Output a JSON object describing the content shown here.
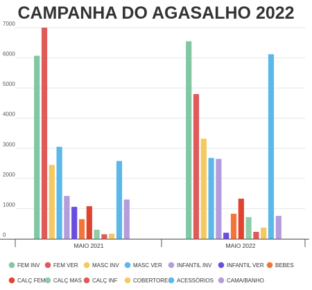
{
  "chart_data": {
    "type": "bar",
    "title": "CAMPANHA DO AGASALHO 2022",
    "xlabel": "",
    "ylabel": "",
    "categories": [
      "MAIO 2021",
      "MAIO 2022"
    ],
    "ylim": [
      0,
      7000
    ],
    "yticks": [
      0,
      1000,
      2000,
      3000,
      4000,
      5000,
      6000,
      7000
    ],
    "grid": true,
    "legend_position": "bottom",
    "series": [
      {
        "name": "FEM INV",
        "color": "#81c7a3",
        "values": [
          6070,
          6550
        ]
      },
      {
        "name": "FEM VER",
        "color": "#e05a5a",
        "values": [
          7000,
          4800
        ]
      },
      {
        "name": "MASC INV",
        "color": "#f5c95f",
        "values": [
          2450,
          3320
        ]
      },
      {
        "name": "MASC VER",
        "color": "#5bb8e8",
        "values": [
          3050,
          2680
        ]
      },
      {
        "name": "INFANTIL INV",
        "color": "#b39ddb",
        "values": [
          1420,
          2650
        ]
      },
      {
        "name": "INFANTIL VER",
        "color": "#6a4de0",
        "values": [
          1060,
          200
        ]
      },
      {
        "name": "BEBES",
        "color": "#f4753a",
        "values": [
          650,
          830
        ]
      },
      {
        "name": "CALÇ FEM",
        "color": "#e0442e",
        "values": [
          1080,
          1330
        ]
      },
      {
        "name": "CALÇ MAS",
        "color": "#8fcca8",
        "values": [
          300,
          720
        ]
      },
      {
        "name": "CALÇ INF",
        "color": "#e05a5a",
        "values": [
          150,
          230
        ]
      },
      {
        "name": "COBERTORES",
        "color": "#f5c95f",
        "values": [
          170,
          370
        ]
      },
      {
        "name": "ACESSÓRIOS",
        "color": "#5bb8e8",
        "values": [
          2580,
          6120
        ]
      },
      {
        "name": "CAMA/BANHO",
        "color": "#b39ddb",
        "values": [
          1300,
          760
        ]
      }
    ]
  }
}
